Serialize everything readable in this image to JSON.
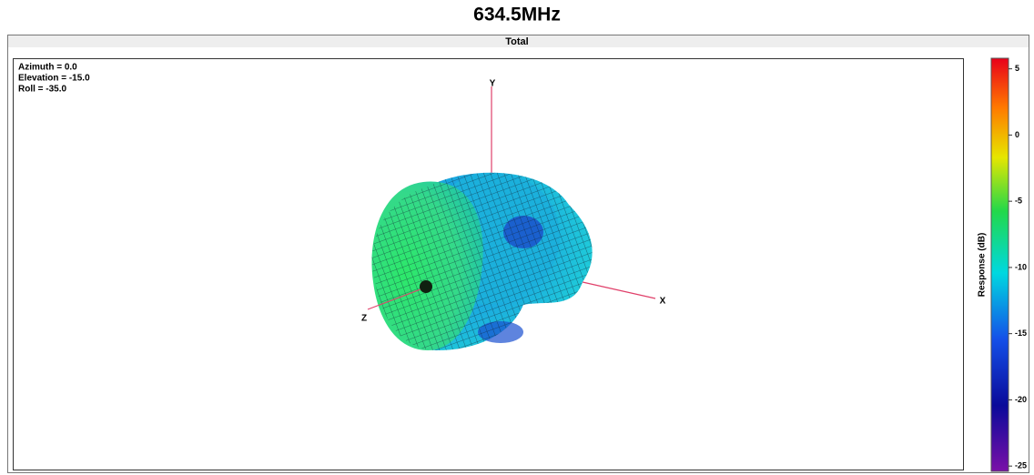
{
  "chart_data": {
    "type": "surface3d",
    "title": "634.5MHz",
    "subtitle": "Total",
    "annotations": [
      "Azimuth = 0.0",
      "Elevation = -15.0",
      "Roll = -35.0"
    ],
    "axis_labels": {
      "x": "X",
      "y": "Y",
      "z": "Z"
    },
    "colorbar": {
      "label": "Response (dB)",
      "lim": [
        -25.4,
        5.8
      ],
      "ticks": [
        5,
        0,
        -5,
        -10,
        -15,
        -20,
        -25
      ]
    }
  }
}
